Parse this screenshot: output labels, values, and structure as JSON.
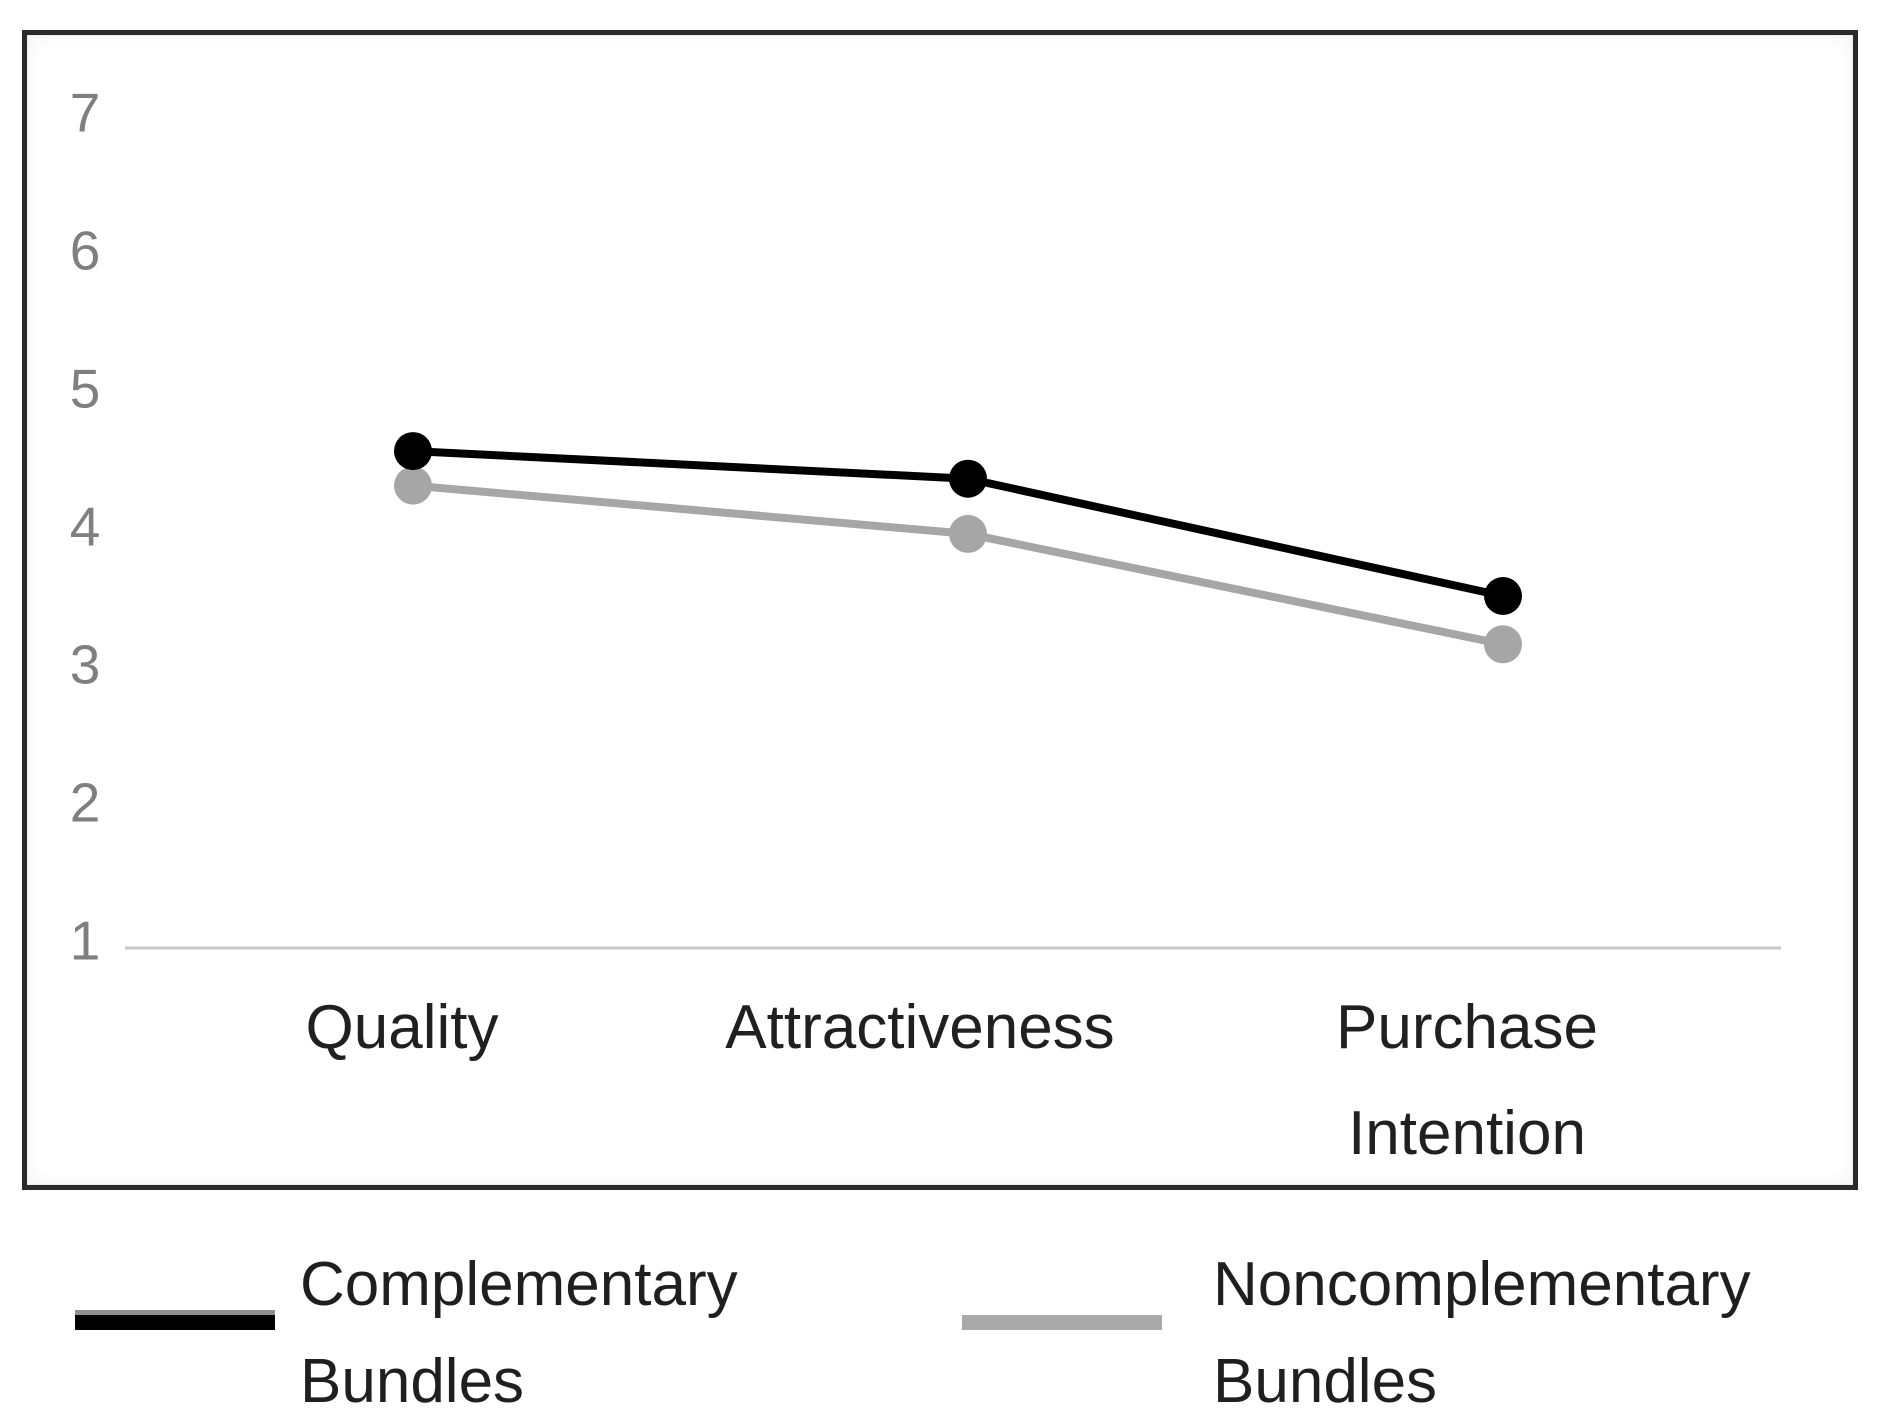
{
  "chart_data": {
    "type": "line",
    "title": "",
    "xlabel": "",
    "ylabel": "",
    "categories": [
      "Quality",
      "Attractiveness",
      "Purchase Intention"
    ],
    "series": [
      {
        "name": "Complementary Bundles",
        "color": "#000000",
        "values": [
          4.55,
          4.35,
          3.5
        ]
      },
      {
        "name": "Noncomplementary Bundles",
        "color": "#a6a6a6",
        "values": [
          4.3,
          3.95,
          3.15
        ]
      }
    ],
    "yticks": [
      1,
      2,
      3,
      4,
      5,
      6,
      7
    ],
    "ylim": [
      1,
      7
    ],
    "grid": false,
    "axis_line_color": "#c8c8c8",
    "tick_label_color": "#7f7f7f",
    "legend_position": "bottom"
  },
  "legend": {
    "items": [
      {
        "label": "Complementary Bundles",
        "color": "#000000"
      },
      {
        "label": "Noncomplementary Bundles",
        "color": "#a9a9a9"
      }
    ]
  }
}
